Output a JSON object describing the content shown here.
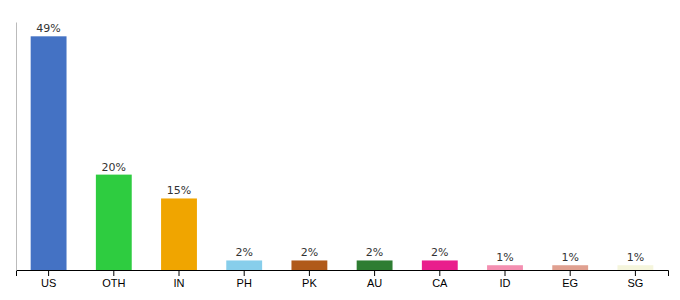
{
  "chart_data": {
    "type": "bar",
    "categories": [
      "US",
      "OTH",
      "IN",
      "PH",
      "PK",
      "AU",
      "CA",
      "ID",
      "EG",
      "SG"
    ],
    "values": [
      49,
      20,
      15,
      2,
      2,
      2,
      2,
      1,
      1,
      1
    ],
    "value_labels": [
      "49%",
      "20%",
      "15%",
      "2%",
      "2%",
      "2%",
      "2%",
      "1%",
      "1%",
      "1%"
    ],
    "colors": [
      "#4472c4",
      "#2ecc40",
      "#f0a500",
      "#87ceeb",
      "#b05a1a",
      "#2e7d32",
      "#e91e8c",
      "#f48fb1",
      "#e0a090",
      "#f5f5dc"
    ],
    "ylim": [
      0,
      52
    ],
    "data_labels": true,
    "tick_labels": "x"
  }
}
